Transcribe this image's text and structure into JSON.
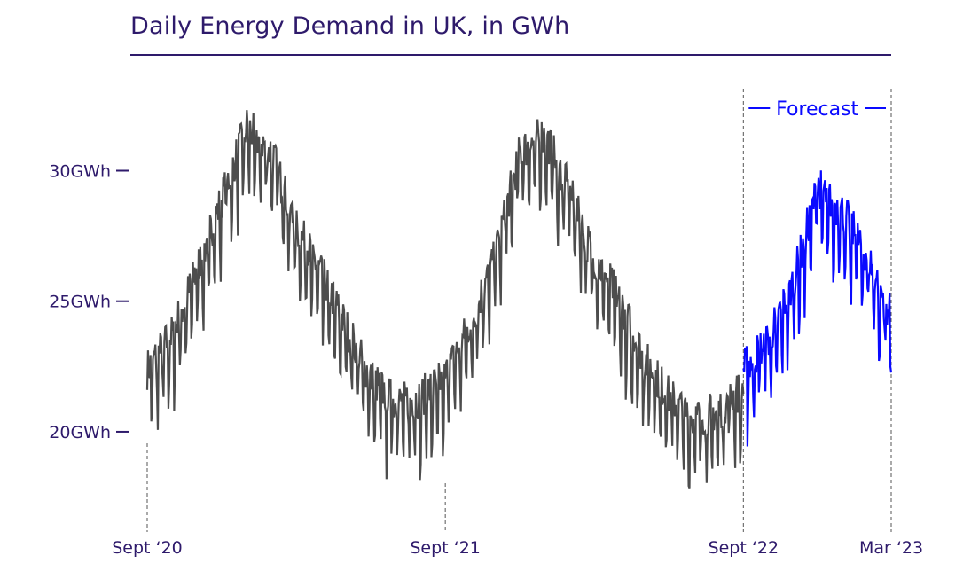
{
  "chart_data": {
    "type": "line",
    "title": "Daily Energy Demand in UK, in GWh",
    "y_unit": "GWh",
    "ylim": [
      16.5,
      34.5
    ],
    "y_ticks": [
      20,
      25,
      30
    ],
    "y_tick_labels": [
      "20GWh",
      "25GWh",
      "30GWh"
    ],
    "x_range": [
      "2020-09-01",
      "2023-03-01"
    ],
    "x_ticks": [
      "2020-09-01",
      "2021-09-01",
      "2022-09-01",
      "2023-03-01"
    ],
    "x_tick_labels": [
      "Sept ‘20",
      "Sept ‘21",
      "Sept ‘22",
      "Mar ‘23"
    ],
    "grid": false,
    "forecast_region": {
      "start": "2022-09-01",
      "end": "2023-03-01",
      "label": "Forecast"
    },
    "colors": {
      "actual": "#4d4d4d",
      "forecast": "#0a0aff",
      "axis": "#2e1a6b"
    },
    "series": [
      {
        "kind": "actual",
        "start": "2020-09-01",
        "monthly_points": [
          [
            "2020-09-01",
            21.5
          ],
          [
            "2020-10-01",
            22.8
          ],
          [
            "2020-11-01",
            25.3
          ],
          [
            "2020-12-01",
            28.0
          ],
          [
            "2021-01-01",
            30.8
          ],
          [
            "2021-02-01",
            29.8
          ],
          [
            "2021-03-01",
            27.0
          ],
          [
            "2021-04-01",
            25.3
          ],
          [
            "2021-05-01",
            23.2
          ],
          [
            "2021-06-01",
            21.2
          ],
          [
            "2021-07-01",
            20.2
          ],
          [
            "2021-08-01",
            20.4
          ],
          [
            "2021-09-01",
            21.2
          ],
          [
            "2021-10-01",
            23.2
          ],
          [
            "2021-11-01",
            25.8
          ],
          [
            "2021-12-01",
            29.8
          ],
          [
            "2022-01-01",
            30.5
          ],
          [
            "2022-02-01",
            28.2
          ],
          [
            "2022-03-01",
            25.8
          ],
          [
            "2022-04-01",
            24.3
          ],
          [
            "2022-05-01",
            22.0
          ],
          [
            "2022-06-01",
            20.5
          ],
          [
            "2022-07-01",
            19.6
          ],
          [
            "2022-08-01",
            19.9
          ],
          [
            "2022-09-01",
            20.8
          ]
        ]
      },
      {
        "kind": "forecast",
        "start": "2022-09-01",
        "monthly_points": [
          [
            "2022-09-01",
            21.5
          ],
          [
            "2022-10-01",
            22.6
          ],
          [
            "2022-11-01",
            24.8
          ],
          [
            "2022-12-01",
            28.5
          ],
          [
            "2023-01-01",
            27.5
          ],
          [
            "2023-02-01",
            25.8
          ],
          [
            "2023-03-01",
            23.5
          ]
        ]
      }
    ]
  }
}
